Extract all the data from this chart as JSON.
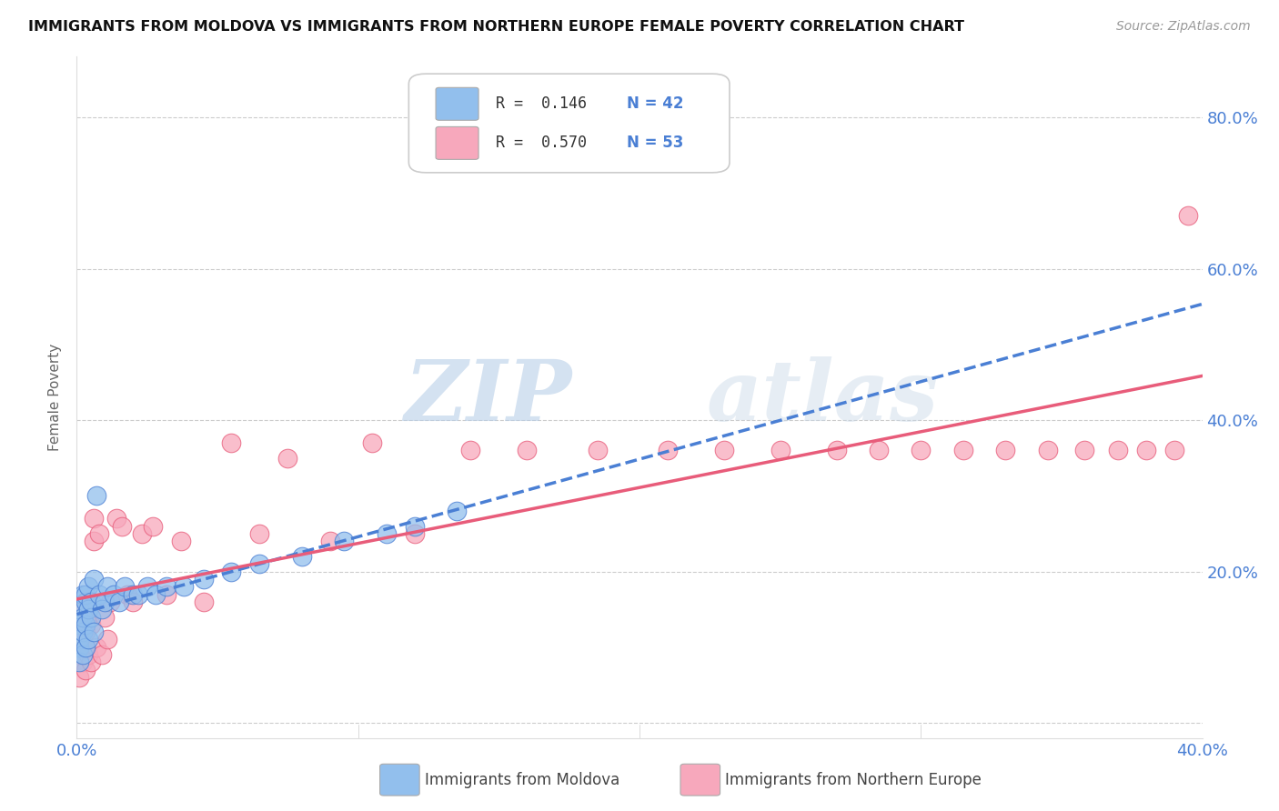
{
  "title": "IMMIGRANTS FROM MOLDOVA VS IMMIGRANTS FROM NORTHERN EUROPE FEMALE POVERTY CORRELATION CHART",
  "source": "Source: ZipAtlas.com",
  "ylabel": "Female Poverty",
  "xlim": [
    0.0,
    0.4
  ],
  "ylim": [
    -0.02,
    0.88
  ],
  "yticks": [
    0.0,
    0.2,
    0.4,
    0.6,
    0.8
  ],
  "xticks": [
    0.0,
    0.1,
    0.2,
    0.3,
    0.4
  ],
  "xtick_labels": [
    "0.0%",
    "",
    "",
    "",
    "40.0%"
  ],
  "ytick_labels_right": [
    "",
    "20.0%",
    "40.0%",
    "60.0%",
    "80.0%"
  ],
  "moldova_color": "#92bfed",
  "northern_europe_color": "#f7a8bc",
  "moldova_line_color": "#4a7fd4",
  "northern_europe_line_color": "#e85c7a",
  "background_color": "#ffffff",
  "watermark_zip": "ZIP",
  "watermark_atlas": "atlas",
  "legend_R_moldova": "R =  0.146",
  "legend_N_moldova": "N = 42",
  "legend_R_northern": "R =  0.570",
  "legend_N_northern": "N = 53",
  "moldova_x": [
    0.001,
    0.001,
    0.001,
    0.001,
    0.001,
    0.002,
    0.002,
    0.002,
    0.002,
    0.003,
    0.003,
    0.003,
    0.003,
    0.004,
    0.004,
    0.004,
    0.005,
    0.005,
    0.006,
    0.006,
    0.007,
    0.008,
    0.009,
    0.01,
    0.011,
    0.013,
    0.015,
    0.017,
    0.02,
    0.022,
    0.025,
    0.028,
    0.032,
    0.038,
    0.045,
    0.055,
    0.065,
    0.08,
    0.095,
    0.11,
    0.12,
    0.135
  ],
  "moldova_y": [
    0.1,
    0.13,
    0.15,
    0.11,
    0.08,
    0.17,
    0.12,
    0.14,
    0.09,
    0.16,
    0.13,
    0.1,
    0.17,
    0.15,
    0.11,
    0.18,
    0.14,
    0.16,
    0.12,
    0.19,
    0.3,
    0.17,
    0.15,
    0.16,
    0.18,
    0.17,
    0.16,
    0.18,
    0.17,
    0.17,
    0.18,
    0.17,
    0.18,
    0.18,
    0.19,
    0.2,
    0.21,
    0.22,
    0.24,
    0.25,
    0.26,
    0.28
  ],
  "northern_europe_x": [
    0.001,
    0.001,
    0.001,
    0.002,
    0.002,
    0.002,
    0.003,
    0.003,
    0.003,
    0.004,
    0.004,
    0.005,
    0.005,
    0.006,
    0.006,
    0.007,
    0.008,
    0.009,
    0.01,
    0.011,
    0.012,
    0.014,
    0.016,
    0.018,
    0.02,
    0.023,
    0.027,
    0.032,
    0.037,
    0.045,
    0.055,
    0.065,
    0.075,
    0.09,
    0.105,
    0.12,
    0.14,
    0.16,
    0.185,
    0.21,
    0.23,
    0.25,
    0.27,
    0.285,
    0.3,
    0.315,
    0.33,
    0.345,
    0.358,
    0.37,
    0.38,
    0.39,
    0.395
  ],
  "northern_europe_y": [
    0.09,
    0.13,
    0.06,
    0.11,
    0.15,
    0.08,
    0.1,
    0.07,
    0.12,
    0.14,
    0.09,
    0.08,
    0.13,
    0.24,
    0.27,
    0.1,
    0.25,
    0.09,
    0.14,
    0.11,
    0.16,
    0.27,
    0.26,
    0.17,
    0.16,
    0.25,
    0.26,
    0.17,
    0.24,
    0.16,
    0.37,
    0.25,
    0.35,
    0.24,
    0.37,
    0.25,
    0.36,
    0.36,
    0.36,
    0.36,
    0.36,
    0.36,
    0.36,
    0.36,
    0.36,
    0.36,
    0.36,
    0.36,
    0.36,
    0.36,
    0.36,
    0.36,
    0.67
  ]
}
